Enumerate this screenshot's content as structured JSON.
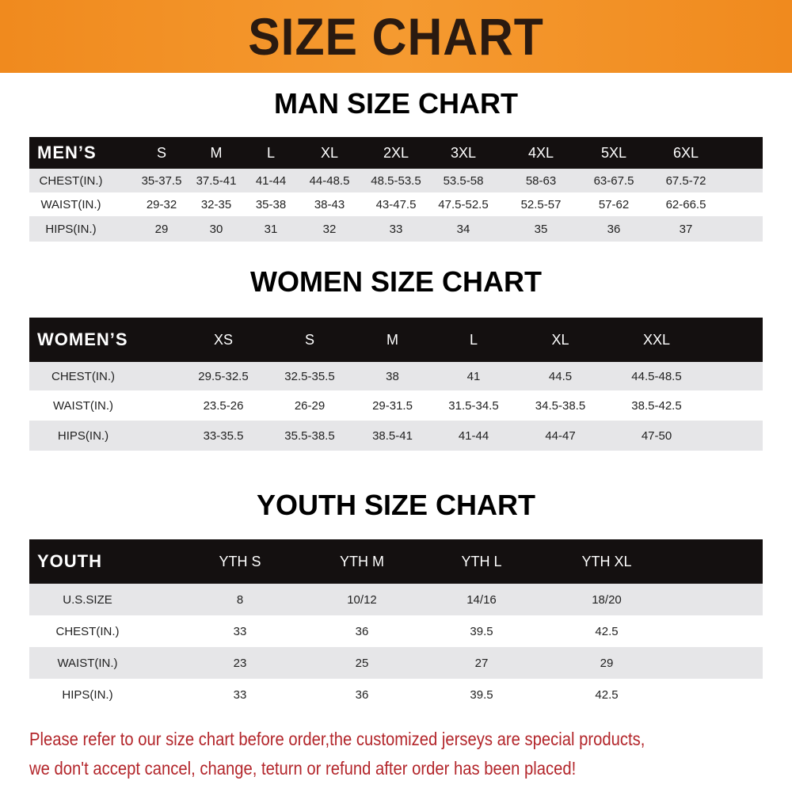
{
  "banner": "SIZE CHART",
  "men": {
    "title": "MAN SIZE CHART",
    "header": "MEN’S",
    "sizes": [
      "S",
      "M",
      "L",
      "XL",
      "2XL",
      "3XL",
      "4XL",
      "5XL",
      "6XL"
    ],
    "rows": [
      {
        "label": "CHEST(IN.)",
        "values": [
          "35-37.5",
          "37.5-41",
          "41-44",
          "44-48.5",
          "48.5-53.5",
          "53.5-58",
          "58-63",
          "63-67.5",
          "67.5-72"
        ]
      },
      {
        "label": "WAIST(IN.)",
        "values": [
          "29-32",
          "32-35",
          "35-38",
          "38-43",
          "43-47.5",
          "47.5-52.5",
          "52.5-57",
          "57-62",
          "62-66.5"
        ]
      },
      {
        "label": "HIPS(IN.)",
        "values": [
          "29",
          "30",
          "31",
          "32",
          "33",
          "34",
          "35",
          "36",
          "37"
        ]
      }
    ]
  },
  "women": {
    "title": "WOMEN SIZE CHART",
    "header": "WOMEN’S",
    "sizes": [
      "XS",
      "S",
      "M",
      "L",
      "XL",
      "XXL"
    ],
    "rows": [
      {
        "label": "CHEST(IN.)",
        "values": [
          "29.5-32.5",
          "32.5-35.5",
          "38",
          "41",
          "44.5",
          "44.5-48.5"
        ]
      },
      {
        "label": "WAIST(IN.)",
        "values": [
          "23.5-26",
          "26-29",
          "29-31.5",
          "31.5-34.5",
          "34.5-38.5",
          "38.5-42.5"
        ]
      },
      {
        "label": "HIPS(IN.)",
        "values": [
          "33-35.5",
          "35.5-38.5",
          "38.5-41",
          "41-44",
          "44-47",
          "47-50"
        ]
      }
    ]
  },
  "youth": {
    "title": "YOUTH SIZE CHART",
    "header": "YOUTH",
    "sizes": [
      "YTH S",
      "YTH M",
      "YTH L",
      "YTH XL"
    ],
    "rows": [
      {
        "label": "U.S.SIZE",
        "values": [
          "8",
          "10/12",
          "14/16",
          "18/20"
        ]
      },
      {
        "label": "CHEST(IN.)",
        "values": [
          "33",
          "36",
          "39.5",
          "42.5"
        ]
      },
      {
        "label": "WAIST(IN.)",
        "values": [
          "23",
          "25",
          "27",
          "29"
        ]
      },
      {
        "label": "HIPS(IN.)",
        "values": [
          "33",
          "36",
          "39.5",
          "42.5"
        ]
      }
    ]
  },
  "notice": [
    "Please refer to our size chart before order,the customized jerseys are special products,",
    "we don't accept cancel, change, teturn or refund after order has been placed!"
  ],
  "colors": {
    "banner": "#f08a1e",
    "header_row": "#141010",
    "notice": "#b3262b"
  }
}
